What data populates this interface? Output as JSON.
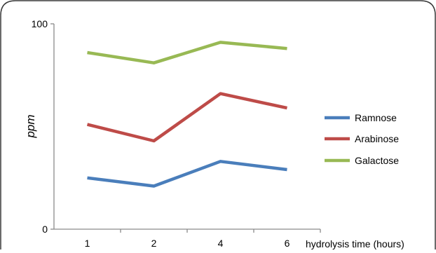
{
  "chart_data": {
    "type": "line",
    "title": "",
    "xlabel": "hydrolysis time (hours)",
    "ylabel": "ppm",
    "categories": [
      "1",
      "2",
      "4",
      "6"
    ],
    "ylim": [
      0,
      100
    ],
    "y_ticks": [
      "0",
      "100"
    ],
    "grid": false,
    "legend_position": "right",
    "series": [
      {
        "name": "Ramnose",
        "color": "#4a7ebb",
        "values": [
          25,
          21,
          33,
          29
        ]
      },
      {
        "name": "Arabinose",
        "color": "#be4b48",
        "values": [
          51,
          43,
          66,
          59
        ]
      },
      {
        "name": "Galactose",
        "color": "#98b954",
        "values": [
          86,
          81,
          91,
          88
        ]
      }
    ]
  }
}
